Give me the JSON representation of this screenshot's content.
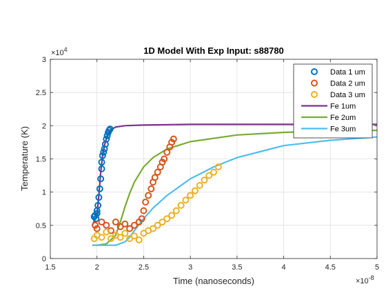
{
  "chart_data": {
    "type": "scatter",
    "title": "1D Model With Exp Input: s88780",
    "xlabel": "Time (nanoseconds)",
    "ylabel": "Temperature (K)",
    "x_exponent_label": "×10",
    "x_exponent_power": "-8",
    "y_exponent_label": "×10",
    "y_exponent_power": "4",
    "xlim": [
      1.5,
      5
    ],
    "ylim": [
      0,
      3
    ],
    "xticks": [
      1.5,
      2,
      2.5,
      3,
      3.5,
      4,
      4.5,
      5
    ],
    "xtick_labels": [
      "1.5",
      "2",
      "2.5",
      "3",
      "3.5",
      "4",
      "4.5",
      "5"
    ],
    "yticks": [
      0,
      0.5,
      1,
      1.5,
      2,
      2.5,
      3
    ],
    "ytick_labels": [
      "0",
      "0.5",
      "1",
      "1.5",
      "2",
      "2.5",
      "3"
    ],
    "grid": true,
    "legend_position": "top-right",
    "series": [
      {
        "name": "Data 1 um",
        "kind": "markers",
        "color": "#0072BD",
        "x": [
          1.97,
          1.98,
          1.99,
          2.0,
          2.0,
          2.01,
          2.02,
          2.03,
          2.04,
          2.05,
          2.05,
          2.06,
          2.07,
          2.08,
          2.09,
          2.1,
          2.11,
          2.12,
          2.13,
          2.14
        ],
        "y": [
          0.63,
          0.65,
          0.6,
          0.68,
          0.72,
          0.8,
          0.92,
          1.05,
          1.2,
          1.35,
          1.45,
          1.55,
          1.6,
          1.65,
          1.72,
          1.8,
          1.85,
          1.9,
          1.93,
          1.95
        ]
      },
      {
        "name": "Data 2 um",
        "kind": "markers",
        "color": "#D95319",
        "x": [
          1.98,
          2.0,
          2.05,
          2.1,
          2.15,
          2.2,
          2.25,
          2.3,
          2.35,
          2.4,
          2.45,
          2.48,
          2.5,
          2.52,
          2.55,
          2.58,
          2.6,
          2.62,
          2.65,
          2.68,
          2.7,
          2.72,
          2.75,
          2.78,
          2.8,
          2.82
        ],
        "y": [
          0.5,
          0.45,
          0.55,
          0.5,
          0.42,
          0.55,
          0.48,
          0.52,
          0.45,
          0.5,
          0.55,
          0.6,
          0.72,
          0.85,
          0.95,
          1.05,
          1.15,
          1.22,
          1.3,
          1.38,
          1.45,
          1.5,
          1.6,
          1.68,
          1.75,
          1.8
        ]
      },
      {
        "name": "Data 3 um",
        "kind": "markers",
        "color": "#EDB120",
        "x": [
          1.97,
          2.0,
          2.05,
          2.1,
          2.15,
          2.2,
          2.25,
          2.3,
          2.35,
          2.4,
          2.45,
          2.5,
          2.55,
          2.6,
          2.65,
          2.7,
          2.75,
          2.8,
          2.85,
          2.9,
          2.95,
          3.0,
          3.05,
          3.1,
          3.15,
          3.2,
          3.25,
          3.3
        ],
        "y": [
          0.3,
          0.35,
          0.32,
          0.4,
          0.3,
          0.35,
          0.32,
          0.38,
          0.3,
          0.34,
          0.28,
          0.38,
          0.42,
          0.45,
          0.5,
          0.55,
          0.6,
          0.65,
          0.72,
          0.8,
          0.88,
          0.95,
          1.02,
          1.1,
          1.18,
          1.25,
          1.3,
          1.38
        ]
      },
      {
        "name": "Fe 1um",
        "kind": "line",
        "color": "#7E2F8E",
        "x": [
          1.95,
          2.0,
          2.02,
          2.04,
          2.06,
          2.08,
          2.1,
          2.12,
          2.15,
          2.2,
          2.3,
          2.5,
          3.0,
          4.0,
          5.0
        ],
        "y": [
          0.5,
          0.65,
          0.95,
          1.3,
          1.55,
          1.7,
          1.8,
          1.88,
          1.94,
          1.98,
          2.0,
          2.01,
          2.02,
          2.02,
          2.02
        ]
      },
      {
        "name": "Fe 2um",
        "kind": "line",
        "color": "#77AC30",
        "x": [
          1.95,
          2.0,
          2.1,
          2.2,
          2.25,
          2.3,
          2.35,
          2.4,
          2.5,
          2.6,
          2.75,
          3.0,
          3.5,
          4.0,
          4.5,
          5.0
        ],
        "y": [
          0.2,
          0.2,
          0.22,
          0.35,
          0.55,
          0.78,
          0.98,
          1.15,
          1.38,
          1.52,
          1.65,
          1.76,
          1.86,
          1.9,
          1.92,
          1.93
        ]
      },
      {
        "name": "Fe 3um",
        "kind": "line",
        "color": "#4DBEEE",
        "x": [
          1.95,
          2.0,
          2.2,
          2.3,
          2.35,
          2.4,
          2.5,
          2.6,
          2.75,
          3.0,
          3.25,
          3.5,
          4.0,
          4.5,
          5.0
        ],
        "y": [
          0.2,
          0.2,
          0.2,
          0.25,
          0.32,
          0.42,
          0.6,
          0.76,
          0.95,
          1.2,
          1.38,
          1.52,
          1.7,
          1.78,
          1.83
        ]
      }
    ]
  }
}
